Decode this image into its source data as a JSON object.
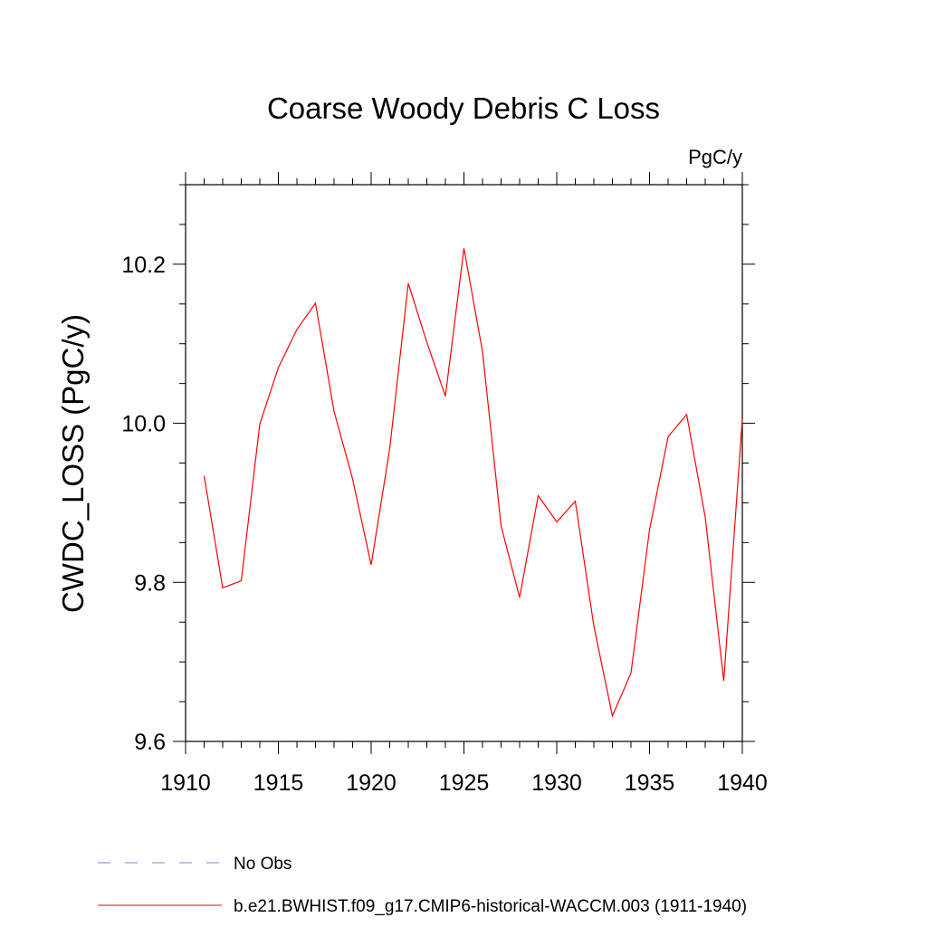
{
  "chart_data": {
    "type": "line",
    "title": "Coarse Woody Debris C Loss",
    "units_label": "PgC/y",
    "xlabel": "",
    "ylabel": "CWDC_LOSS  (PgC/y)",
    "xlim": [
      1910,
      1940
    ],
    "ylim": [
      9.6,
      10.3
    ],
    "x_ticks": [
      1910,
      1915,
      1920,
      1925,
      1930,
      1935,
      1940
    ],
    "x_tick_labels": [
      "1910",
      "1915",
      "1920",
      "1925",
      "1930",
      "1935",
      "1940"
    ],
    "y_ticks": [
      9.6,
      9.8,
      10.0,
      10.2
    ],
    "y_tick_labels": [
      "9.6",
      "9.8",
      "10.0",
      "10.2"
    ],
    "grid": false,
    "legend_position": "bottom",
    "series": [
      {
        "name": "b.e21.BWHIST.f09_g17.CMIP6-historical-WACCM.003 (1911-1940)",
        "color": "#ff0000",
        "style": "solid",
        "x": [
          1911,
          1912,
          1913,
          1914,
          1915,
          1916,
          1917,
          1918,
          1919,
          1920,
          1921,
          1922,
          1923,
          1924,
          1925,
          1926,
          1927,
          1928,
          1929,
          1930,
          1931,
          1932,
          1933,
          1934,
          1935,
          1936,
          1937,
          1938,
          1939,
          1940
        ],
        "values": [
          9.934,
          9.793,
          9.802,
          9.999,
          10.07,
          10.118,
          10.151,
          10.015,
          9.93,
          9.822,
          9.968,
          10.176,
          10.102,
          10.034,
          10.22,
          10.09,
          9.871,
          9.781,
          9.909,
          9.876,
          9.902,
          9.745,
          9.632,
          9.686,
          9.866,
          9.983,
          10.011,
          9.882,
          9.676,
          10.005
        ]
      }
    ],
    "legend": [
      {
        "label": "No Obs",
        "color": "#8a7fc8",
        "style": "dashed"
      },
      {
        "label": "b.e21.BWHIST.f09_g17.CMIP6-historical-WACCM.003 (1911-1940)",
        "color": "#ff0000",
        "style": "solid"
      }
    ]
  }
}
